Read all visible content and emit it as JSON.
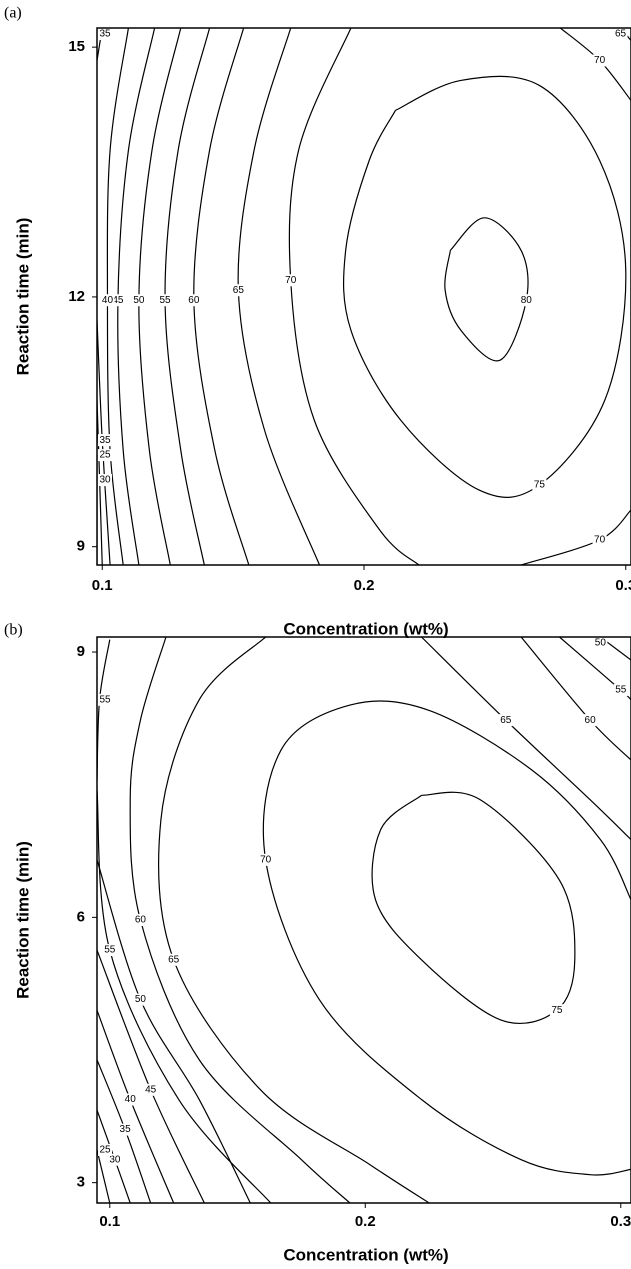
{
  "chart_data": [
    {
      "type": "contour",
      "panel_label": "(a)",
      "x_label": "Concentration (wt%)",
      "y_label": "Reaction time (min)",
      "xlim": [
        0.098,
        0.302
      ],
      "ylim": [
        8.78,
        15.23
      ],
      "xticks": [
        0.1,
        0.2,
        0.3
      ],
      "yticks": [
        9,
        12,
        15
      ],
      "contours": [
        {
          "level": 80,
          "x": [
            0.233,
            0.246,
            0.26,
            0.262,
            0.252,
            0.237,
            0.231,
            0.233
          ],
          "y": [
            12.56,
            12.95,
            12.56,
            11.96,
            11.24,
            11.6,
            12.08,
            12.56
          ]
        },
        {
          "level": 75,
          "x": [
            0.212,
            0.237,
            0.267,
            0.29,
            0.3,
            0.292,
            0.267,
            0.244,
            0.214,
            0.195,
            0.193,
            0.202,
            0.212
          ],
          "y": [
            14.24,
            14.6,
            14.54,
            13.64,
            12.32,
            10.76,
            9.74,
            9.68,
            10.52,
            11.6,
            12.56,
            13.64,
            14.24
          ]
        },
        {
          "level": 70,
          "x": [
            0.195,
            0.175,
            0.172,
            0.181,
            0.206,
            0.221
          ],
          "y": [
            15.23,
            13.76,
            12.2,
            10.52,
            9.2,
            8.78
          ]
        },
        {
          "level": 70,
          "x": [
            0.26,
            0.29,
            0.302
          ],
          "y": [
            8.78,
            9.08,
            9.44
          ]
        },
        {
          "level": 70,
          "x": [
            0.275,
            0.29,
            0.302
          ],
          "y": [
            15.23,
            14.84,
            14.36
          ]
        },
        {
          "level": 65,
          "x": [
            0.172,
            0.158,
            0.152,
            0.162,
            0.183
          ],
          "y": [
            15.23,
            13.76,
            12.08,
            10.4,
            8.78
          ]
        },
        {
          "level": 65,
          "x": [
            0.298,
            0.302
          ],
          "y": [
            15.23,
            15.08
          ]
        },
        {
          "level": 60,
          "x": [
            0.154,
            0.141,
            0.135,
            0.143,
            0.156
          ],
          "y": [
            15.23,
            13.76,
            11.96,
            10.16,
            8.78
          ]
        },
        {
          "level": 55,
          "x": [
            0.141,
            0.129,
            0.124,
            0.13,
            0.139
          ],
          "y": [
            15.23,
            13.76,
            11.96,
            10.16,
            8.78
          ]
        },
        {
          "level": 50,
          "x": [
            0.13,
            0.119,
            0.114,
            0.118,
            0.126
          ],
          "y": [
            15.23,
            13.76,
            11.96,
            10.16,
            8.78
          ]
        },
        {
          "level": 45,
          "x": [
            0.12,
            0.11,
            0.106,
            0.108,
            0.114
          ],
          "y": [
            15.23,
            13.76,
            11.96,
            10.16,
            8.78
          ]
        },
        {
          "level": 40,
          "x": [
            0.11,
            0.103,
            0.102,
            0.103,
            0.108
          ],
          "y": [
            15.23,
            13.76,
            11.96,
            10.16,
            8.78
          ]
        },
        {
          "level": 35,
          "x": [
            0.1,
            0.098
          ],
          "y": [
            15.23,
            14.84
          ]
        },
        {
          "level": 35,
          "x": [
            0.098,
            0.1,
            0.103
          ],
          "y": [
            11.72,
            10.28,
            8.78
          ]
        },
        {
          "level": 30,
          "x": [
            0.098,
            0.099,
            0.1
          ],
          "y": [
            10.76,
            9.8,
            8.78
          ]
        },
        {
          "level": 25,
          "x": [
            0.098,
            0.098
          ],
          "y": [
            10.1,
            8.78
          ]
        }
      ]
    },
    {
      "type": "contour",
      "panel_label": "(b)",
      "x_label": "Concentration (wt%)",
      "y_label": "Reaction time (min)",
      "xlim": [
        0.095,
        0.304
      ],
      "ylim": [
        2.77,
        9.17
      ],
      "xticks": [
        0.1,
        0.2,
        0.3
      ],
      "yticks": [
        3,
        6,
        9
      ],
      "contours": [
        {
          "level": 75,
          "x": [
            0.222,
            0.245,
            0.276,
            0.282,
            0.275,
            0.253,
            0.222,
            0.204,
            0.206,
            0.222
          ],
          "y": [
            7.38,
            7.33,
            6.42,
            5.52,
            4.95,
            4.84,
            5.52,
            6.2,
            6.99,
            7.38
          ]
        },
        {
          "level": 70,
          "x": [
            0.304,
            0.288,
            0.261,
            0.222,
            0.182,
            0.161,
            0.167,
            0.194,
            0.225,
            0.265,
            0.292,
            0.304
          ],
          "y": [
            3.15,
            3.09,
            3.26,
            3.94,
            5.07,
            6.65,
            7.89,
            8.4,
            8.34,
            7.67,
            6.88,
            6.2
          ]
        },
        {
          "level": 65,
          "x": [
            0.161,
            0.135,
            0.12,
            0.125,
            0.159,
            0.202,
            0.225
          ],
          "y": [
            9.17,
            8.46,
            7.1,
            5.52,
            4.05,
            3.2,
            2.77
          ]
        },
        {
          "level": 65,
          "x": [
            0.222,
            0.255,
            0.288,
            0.304
          ],
          "y": [
            9.17,
            8.23,
            7.33,
            6.88
          ]
        },
        {
          "level": 60,
          "x": [
            0.122,
            0.112,
            0.108,
            0.112,
            0.135,
            0.175,
            0.194
          ],
          "y": [
            9.17,
            8.23,
            7.33,
            5.97,
            4.39,
            3.26,
            2.77
          ]
        },
        {
          "level": 60,
          "x": [
            0.261,
            0.288,
            0.304
          ],
          "y": [
            9.17,
            8.23,
            7.78
          ]
        },
        {
          "level": 55,
          "x": [
            0.1,
            0.096,
            0.095
          ],
          "y": [
            9.14,
            8.46,
            7.55
          ]
        },
        {
          "level": 55,
          "x": [
            0.095,
            0.1,
            0.127,
            0.163
          ],
          "y": [
            7.44,
            5.63,
            3.94,
            2.77
          ]
        },
        {
          "level": 55,
          "x": [
            0.276,
            0.3,
            0.304
          ],
          "y": [
            9.17,
            8.57,
            8.46
          ]
        },
        {
          "level": 50,
          "x": [
            0.095,
            0.112,
            0.135,
            0.155
          ],
          "y": [
            6.65,
            5.07,
            3.94,
            2.77
          ]
        },
        {
          "level": 50,
          "x": [
            0.292,
            0.304
          ],
          "y": [
            9.17,
            8.91
          ]
        },
        {
          "level": 45,
          "x": [
            0.095,
            0.116,
            0.137
          ],
          "y": [
            5.63,
            4.05,
            2.77
          ]
        },
        {
          "level": 40,
          "x": [
            0.095,
            0.108,
            0.125
          ],
          "y": [
            4.95,
            3.94,
            2.77
          ]
        },
        {
          "level": 35,
          "x": [
            0.095,
            0.106,
            0.116
          ],
          "y": [
            4.39,
            3.6,
            2.77
          ]
        },
        {
          "level": 30,
          "x": [
            0.095,
            0.102,
            0.108
          ],
          "y": [
            3.82,
            3.26,
            2.77
          ]
        },
        {
          "level": 25,
          "x": [
            0.095,
            0.1
          ],
          "y": [
            3.37,
            2.77
          ]
        }
      ]
    }
  ]
}
